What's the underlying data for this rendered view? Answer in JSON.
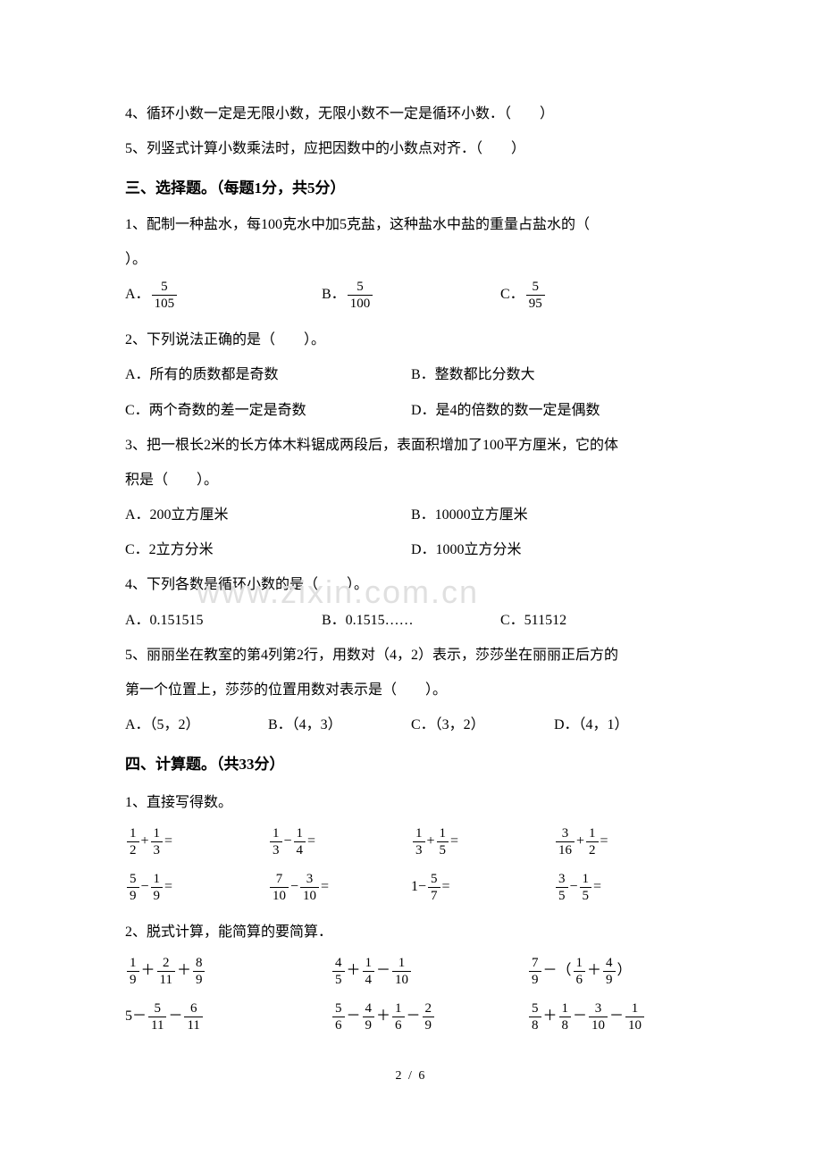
{
  "judge": {
    "q4": "4、循环小数一定是无限小数，无限小数不一定是循环小数．（　　）",
    "q5": "5、列竖式计算小数乘法时，应把因数中的小数点对齐．（　　）"
  },
  "section3": {
    "header": "三、选择题。（每题1分，共5分）",
    "q1": {
      "line1": "1、配制一种盐水，每100克水中加5克盐，这种盐水中盐的重量占盐水的（",
      "line2": "）。",
      "optA": "A．",
      "optA_num": "5",
      "optA_den": "105",
      "optB": "B．",
      "optB_num": "5",
      "optB_den": "100",
      "optC": "C．",
      "optC_num": "5",
      "optC_den": "95"
    },
    "q2": {
      "stem": "2、下列说法正确的是（　　）。",
      "A": "A．所有的质数都是奇数",
      "B": "B．整数都比分数大",
      "C": "C．两个奇数的差一定是奇数",
      "D": "D．是4的倍数的数一定是偶数"
    },
    "q3": {
      "line1": "3、把一根长2米的长方体木料锯成两段后，表面积增加了100平方厘米，它的体",
      "line2": "积是（　　）。",
      "A": "A．200立方厘米",
      "B": "B．10000立方厘米",
      "C": "C．2立方分米",
      "D": "D．1000立方分米"
    },
    "q4": {
      "stem": "4、下列各数是循环小数的是（　　）。",
      "A": "A．0.151515",
      "B": "B．0.1515……",
      "C": "C．511512"
    },
    "q5": {
      "line1": "5、丽丽坐在教室的第4列第2行，用数对（4，2）表示，莎莎坐在丽丽正后方的",
      "line2": "第一个位置上，莎莎的位置用数对表示是（　　）。",
      "A": "A．（5，2）",
      "B": "B．（4，3）",
      "C": "C．（3，2）",
      "D": "D．（4，1）"
    }
  },
  "section4": {
    "header": "四、计算题。（共33分）",
    "q1": {
      "label": "1、直接写得数。",
      "row1": [
        {
          "a_num": "1",
          "a_den": "2",
          "op": "+",
          "b_num": "1",
          "b_den": "3"
        },
        {
          "a_num": "1",
          "a_den": "3",
          "op": "−",
          "b_num": "1",
          "b_den": "4"
        },
        {
          "a_num": "1",
          "a_den": "3",
          "op": "+",
          "b_num": "1",
          "b_den": "5"
        },
        {
          "a_num": "3",
          "a_den": "16",
          "op": "+",
          "b_num": "1",
          "b_den": "2"
        }
      ],
      "row2": [
        {
          "a_num": "5",
          "a_den": "9",
          "op": "−",
          "b_num": "1",
          "b_den": "9"
        },
        {
          "a_num": "7",
          "a_den": "10",
          "op": "−",
          "b_num": "3",
          "b_den": "10"
        },
        {
          "pre": "1",
          "op": "−",
          "b_num": "5",
          "b_den": "7"
        },
        {
          "a_num": "3",
          "a_den": "5",
          "op": "−",
          "b_num": "1",
          "b_den": "5"
        }
      ]
    },
    "q2": {
      "label": "2、脱式计算，能简算的要简算．",
      "row1": [
        {
          "parts": [
            {
              "n": "1",
              "d": "9"
            },
            {
              "op": "＋"
            },
            {
              "n": "2",
              "d": "11"
            },
            {
              "op": "＋"
            },
            {
              "n": "8",
              "d": "9"
            }
          ]
        },
        {
          "parts": [
            {
              "n": "4",
              "d": "5"
            },
            {
              "op": "＋"
            },
            {
              "n": "1",
              "d": "4"
            },
            {
              "op": "－"
            },
            {
              "n": "1",
              "d": "10"
            }
          ]
        },
        {
          "parts": [
            {
              "n": "7",
              "d": "9"
            },
            {
              "op": "－（"
            },
            {
              "n": "1",
              "d": "6"
            },
            {
              "op": "＋"
            },
            {
              "n": "4",
              "d": "9"
            },
            {
              "op": "）"
            }
          ]
        }
      ],
      "row2": [
        {
          "parts": [
            {
              "t": "5"
            },
            {
              "op": "－"
            },
            {
              "n": "5",
              "d": "11"
            },
            {
              "op": "－"
            },
            {
              "n": "6",
              "d": "11"
            }
          ]
        },
        {
          "parts": [
            {
              "n": "5",
              "d": "6"
            },
            {
              "op": "－"
            },
            {
              "n": "4",
              "d": "9"
            },
            {
              "op": "＋"
            },
            {
              "n": "1",
              "d": "6"
            },
            {
              "op": "－"
            },
            {
              "n": "2",
              "d": "9"
            }
          ]
        },
        {
          "parts": [
            {
              "n": "5",
              "d": "8"
            },
            {
              "op": "＋"
            },
            {
              "n": "1",
              "d": "8"
            },
            {
              "op": "－"
            },
            {
              "n": "3",
              "d": "10"
            },
            {
              "op": "－"
            },
            {
              "n": "1",
              "d": "10"
            }
          ]
        }
      ]
    }
  },
  "watermark": "www.zixin.com.cn",
  "page_num": "2 / 6"
}
